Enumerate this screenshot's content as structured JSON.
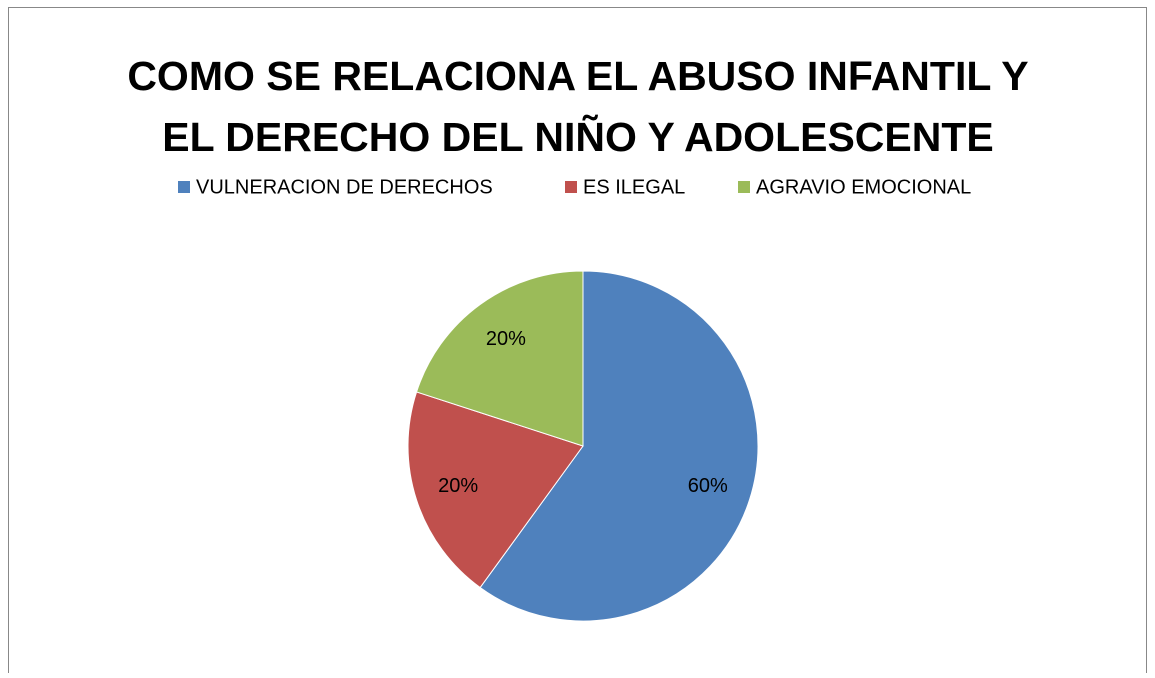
{
  "chart_data": {
    "type": "pie",
    "title": [
      "COMO SE RELACIONA EL ABUSO INFANTIL Y",
      "EL DERECHO DEL NIÑO Y ADOLESCENTE"
    ],
    "categories": [
      "VULNERACION DE DERECHOS",
      "ES ILEGAL",
      "AGRAVIO EMOCIONAL"
    ],
    "values": [
      60,
      20,
      20
    ],
    "value_labels": [
      "60%",
      "20%",
      "20%"
    ],
    "colors": [
      "#4f81bd",
      "#c0504d",
      "#9bbb59"
    ],
    "legend": "top"
  }
}
